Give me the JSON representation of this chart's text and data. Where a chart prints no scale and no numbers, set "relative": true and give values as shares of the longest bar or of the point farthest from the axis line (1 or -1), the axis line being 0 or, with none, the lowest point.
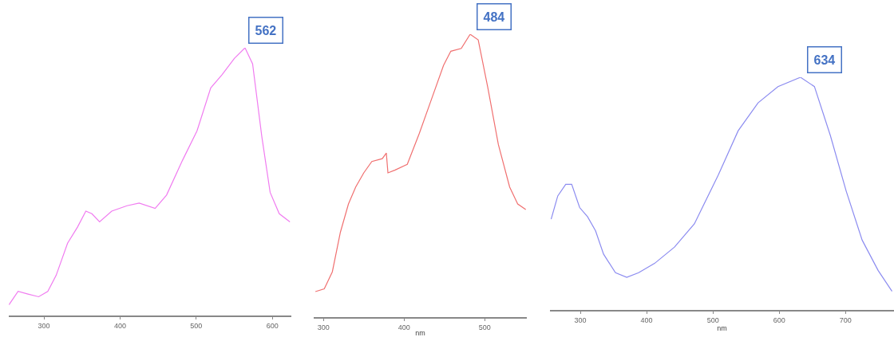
{
  "chart_data": [
    {
      "type": "line",
      "relative": true,
      "x": [
        254,
        266,
        279,
        293,
        305,
        316,
        331,
        344,
        355,
        363,
        373,
        389,
        409,
        425,
        446,
        461,
        482,
        501,
        519,
        534,
        550,
        564,
        574,
        586,
        597,
        609,
        623
      ],
      "series": [
        {
          "color": "#f07cf0",
          "values": [
            0.04,
            0.09,
            0.08,
            0.07,
            0.09,
            0.15,
            0.27,
            0.33,
            0.39,
            0.38,
            0.35,
            0.39,
            0.41,
            0.42,
            0.4,
            0.45,
            0.58,
            0.69,
            0.85,
            0.9,
            0.96,
            1.0,
            0.94,
            0.67,
            0.46,
            0.38,
            0.35
          ]
        }
      ],
      "xlim": [
        254,
        625
      ],
      "xticks": [
        300,
        400,
        500,
        600
      ],
      "annotations": [
        {
          "text": "562",
          "x": 562,
          "y": 1.0
        }
      ]
    },
    {
      "type": "line",
      "relative": true,
      "x": [
        290,
        301,
        311,
        321,
        331,
        340,
        350,
        360,
        373,
        378,
        380,
        389,
        404,
        419,
        434,
        449,
        458,
        471,
        482,
        492,
        504,
        517,
        531,
        541,
        551
      ],
      "series": [
        {
          "color": "#f07070",
          "values": [
            0.09,
            0.1,
            0.16,
            0.3,
            0.4,
            0.46,
            0.51,
            0.55,
            0.56,
            0.58,
            0.51,
            0.52,
            0.54,
            0.65,
            0.77,
            0.89,
            0.94,
            0.95,
            1.0,
            0.98,
            0.81,
            0.61,
            0.46,
            0.4,
            0.38
          ]
        }
      ],
      "xlim": [
        288,
        552
      ],
      "xticks": [
        300,
        400,
        500
      ],
      "xlabel": "nm",
      "annotations": [
        {
          "text": "484",
          "x": 484,
          "y": 1.0
        }
      ]
    },
    {
      "type": "line",
      "relative": true,
      "x": [
        256,
        266,
        278,
        287,
        299,
        311,
        323,
        335,
        353,
        370,
        388,
        412,
        442,
        472,
        508,
        538,
        568,
        598,
        632,
        653,
        677,
        701,
        725,
        749,
        770
      ],
      "series": [
        {
          "color": "#8c8cf0",
          "values": [
            0.39,
            0.49,
            0.54,
            0.54,
            0.44,
            0.4,
            0.34,
            0.24,
            0.16,
            0.14,
            0.16,
            0.2,
            0.27,
            0.37,
            0.58,
            0.77,
            0.89,
            0.96,
            1.0,
            0.96,
            0.75,
            0.51,
            0.3,
            0.17,
            0.08
          ]
        }
      ],
      "xlim": [
        254,
        773
      ],
      "xticks": [
        300,
        400,
        500,
        600,
        700
      ],
      "xlabel": "nm",
      "annotations": [
        {
          "text": "634",
          "x": 634,
          "y": 1.0
        }
      ]
    }
  ]
}
